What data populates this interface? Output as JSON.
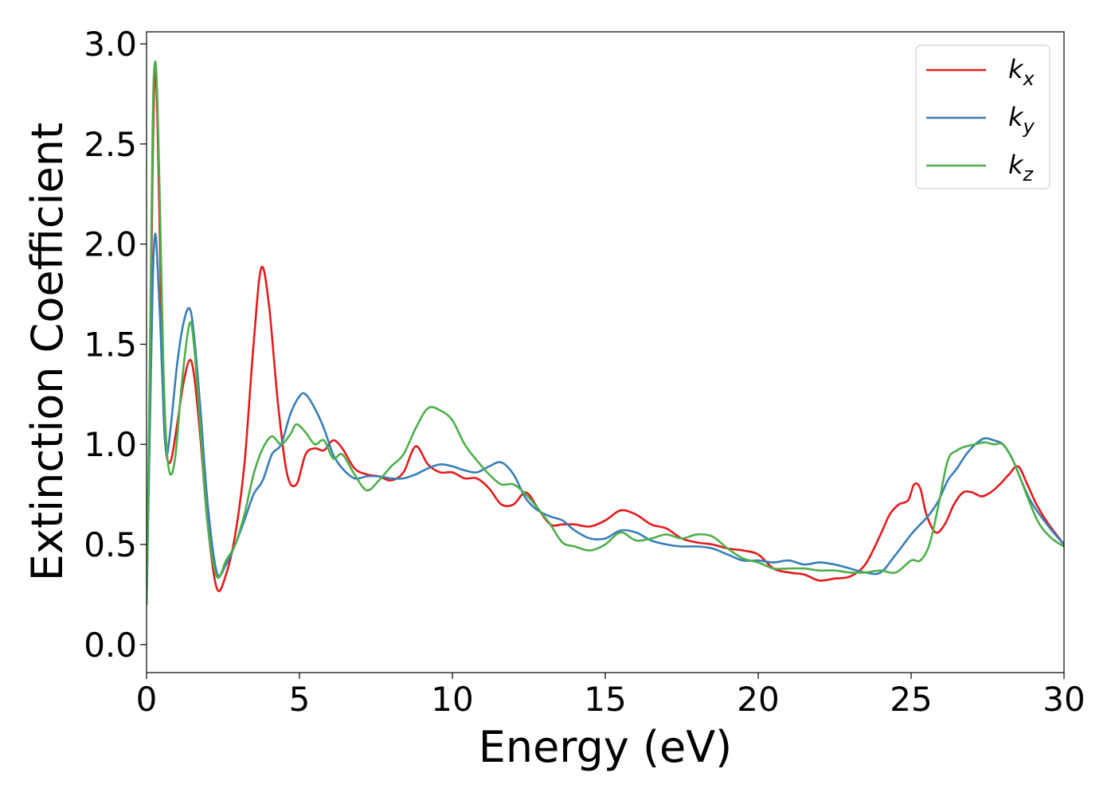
{
  "chart_data": {
    "type": "line",
    "xlabel": "Energy (eV)",
    "ylabel": "Extinction Coefficient",
    "xlim": [
      0,
      30
    ],
    "ylim": [
      -0.14,
      3.06
    ],
    "xticks": [
      "0",
      "5",
      "10",
      "15",
      "20",
      "25",
      "30"
    ],
    "yticks": [
      "0.0",
      "0.5",
      "1.0",
      "1.5",
      "2.0",
      "2.5",
      "3.0"
    ],
    "grid": false,
    "legend_position": "top-right",
    "series": [
      {
        "name": "k",
        "subscript": "x",
        "color": "#e41a1c",
        "x": [
          0,
          0.1,
          0.2,
          0.28,
          0.36,
          0.45,
          0.55,
          0.65,
          0.8,
          1.0,
          1.2,
          1.4,
          1.55,
          1.75,
          2.0,
          2.3,
          2.6,
          2.9,
          3.2,
          3.5,
          3.75,
          4.0,
          4.3,
          4.6,
          4.9,
          5.2,
          5.5,
          5.8,
          6.1,
          6.4,
          6.8,
          7.2,
          7.6,
          8.0,
          8.4,
          8.8,
          9.2,
          9.6,
          10.0,
          10.4,
          10.8,
          11.2,
          11.6,
          12.0,
          12.4,
          12.8,
          13.2,
          13.6,
          14.0,
          14.5,
          15.0,
          15.5,
          16.0,
          16.5,
          17.0,
          17.5,
          18.0,
          18.5,
          19.0,
          19.5,
          20.0,
          20.5,
          21.0,
          21.5,
          22.0,
          22.5,
          23.0,
          23.5,
          24.0,
          24.3,
          24.6,
          24.9,
          25.1,
          25.3,
          25.5,
          25.8,
          26.1,
          26.4,
          26.7,
          27.0,
          27.3,
          27.6,
          27.9,
          28.2,
          28.5,
          28.8,
          29.1,
          29.5,
          30.0
        ],
        "values": [
          0.2,
          1.2,
          2.4,
          2.88,
          2.6,
          1.9,
          1.2,
          0.95,
          0.92,
          1.1,
          1.3,
          1.42,
          1.35,
          1.05,
          0.6,
          0.28,
          0.35,
          0.55,
          0.9,
          1.5,
          1.88,
          1.7,
          1.2,
          0.85,
          0.8,
          0.95,
          0.98,
          0.97,
          1.02,
          0.98,
          0.88,
          0.85,
          0.84,
          0.82,
          0.86,
          0.99,
          0.9,
          0.86,
          0.86,
          0.83,
          0.83,
          0.78,
          0.7,
          0.7,
          0.76,
          0.68,
          0.6,
          0.6,
          0.6,
          0.59,
          0.62,
          0.67,
          0.65,
          0.6,
          0.58,
          0.53,
          0.51,
          0.5,
          0.48,
          0.47,
          0.45,
          0.38,
          0.36,
          0.35,
          0.32,
          0.33,
          0.34,
          0.4,
          0.55,
          0.65,
          0.7,
          0.72,
          0.8,
          0.78,
          0.65,
          0.56,
          0.6,
          0.7,
          0.76,
          0.76,
          0.74,
          0.76,
          0.8,
          0.85,
          0.89,
          0.8,
          0.7,
          0.6,
          0.5
        ]
      },
      {
        "name": "k",
        "subscript": "y",
        "color": "#377eb8",
        "x": [
          0,
          0.1,
          0.2,
          0.28,
          0.36,
          0.45,
          0.55,
          0.65,
          0.8,
          1.0,
          1.2,
          1.4,
          1.55,
          1.75,
          2.0,
          2.3,
          2.6,
          2.9,
          3.2,
          3.5,
          3.8,
          4.1,
          4.4,
          4.7,
          5.0,
          5.2,
          5.5,
          5.8,
          6.1,
          6.4,
          6.8,
          7.2,
          7.6,
          8.0,
          8.4,
          8.8,
          9.2,
          9.6,
          10.0,
          10.4,
          10.8,
          11.2,
          11.6,
          12.0,
          12.4,
          12.8,
          13.2,
          13.6,
          14.0,
          14.5,
          15.0,
          15.5,
          16.0,
          16.5,
          17.0,
          17.5,
          18.0,
          18.5,
          19.0,
          19.5,
          20.0,
          20.5,
          21.0,
          21.5,
          22.0,
          22.5,
          23.0,
          23.5,
          24.0,
          24.5,
          25.0,
          25.3,
          25.6,
          25.9,
          26.2,
          26.5,
          26.8,
          27.1,
          27.4,
          27.7,
          28.0,
          28.3,
          28.6,
          28.9,
          29.2,
          29.6,
          30.0
        ],
        "values": [
          0.2,
          1.0,
          1.8,
          2.05,
          1.9,
          1.6,
          1.2,
          0.95,
          1.1,
          1.4,
          1.6,
          1.68,
          1.55,
          1.2,
          0.7,
          0.36,
          0.4,
          0.5,
          0.62,
          0.75,
          0.82,
          0.95,
          1.0,
          1.15,
          1.24,
          1.25,
          1.18,
          1.08,
          0.95,
          0.88,
          0.83,
          0.84,
          0.84,
          0.83,
          0.83,
          0.85,
          0.88,
          0.9,
          0.89,
          0.87,
          0.86,
          0.89,
          0.91,
          0.85,
          0.73,
          0.67,
          0.64,
          0.62,
          0.57,
          0.53,
          0.53,
          0.57,
          0.56,
          0.52,
          0.5,
          0.49,
          0.49,
          0.48,
          0.45,
          0.42,
          0.42,
          0.41,
          0.42,
          0.4,
          0.41,
          0.4,
          0.38,
          0.36,
          0.36,
          0.45,
          0.55,
          0.6,
          0.65,
          0.72,
          0.82,
          0.88,
          0.95,
          1.0,
          1.03,
          1.02,
          1.0,
          0.93,
          0.82,
          0.72,
          0.65,
          0.57,
          0.5
        ]
      },
      {
        "name": "k",
        "subscript": "z",
        "color": "#4daf4a",
        "x": [
          0,
          0.1,
          0.2,
          0.28,
          0.36,
          0.45,
          0.55,
          0.65,
          0.78,
          0.95,
          1.15,
          1.4,
          1.55,
          1.75,
          2.0,
          2.3,
          2.6,
          2.9,
          3.2,
          3.5,
          3.8,
          4.1,
          4.4,
          4.7,
          4.9,
          5.2,
          5.5,
          5.8,
          6.1,
          6.4,
          6.8,
          7.2,
          7.6,
          8.0,
          8.4,
          8.8,
          9.2,
          9.6,
          10.0,
          10.4,
          10.8,
          11.2,
          11.6,
          12.0,
          12.4,
          12.8,
          13.2,
          13.6,
          14.0,
          14.5,
          15.0,
          15.5,
          16.0,
          16.5,
          17.0,
          17.5,
          18.0,
          18.5,
          19.0,
          19.5,
          20.0,
          20.5,
          21.0,
          21.5,
          22.0,
          22.5,
          23.0,
          23.5,
          24.0,
          24.5,
          25.0,
          25.3,
          25.6,
          25.9,
          26.2,
          26.5,
          26.8,
          27.1,
          27.4,
          27.7,
          28.0,
          28.3,
          28.6,
          28.9,
          29.2,
          29.6,
          30.0
        ],
        "values": [
          0.2,
          1.3,
          2.6,
          2.91,
          2.7,
          2.1,
          1.4,
          1.0,
          0.85,
          0.95,
          1.3,
          1.6,
          1.5,
          1.1,
          0.6,
          0.34,
          0.42,
          0.5,
          0.65,
          0.85,
          0.98,
          1.04,
          1.0,
          1.05,
          1.1,
          1.06,
          1.0,
          1.02,
          0.93,
          0.95,
          0.85,
          0.77,
          0.82,
          0.89,
          0.95,
          1.08,
          1.18,
          1.17,
          1.12,
          1.0,
          0.92,
          0.85,
          0.8,
          0.8,
          0.75,
          0.68,
          0.6,
          0.51,
          0.49,
          0.47,
          0.5,
          0.56,
          0.52,
          0.53,
          0.55,
          0.53,
          0.55,
          0.54,
          0.48,
          0.43,
          0.41,
          0.38,
          0.38,
          0.38,
          0.37,
          0.37,
          0.36,
          0.36,
          0.37,
          0.36,
          0.42,
          0.42,
          0.5,
          0.7,
          0.92,
          0.97,
          0.99,
          1.0,
          1.01,
          1.0,
          1.0,
          0.93,
          0.82,
          0.7,
          0.6,
          0.53,
          0.49
        ]
      }
    ]
  }
}
